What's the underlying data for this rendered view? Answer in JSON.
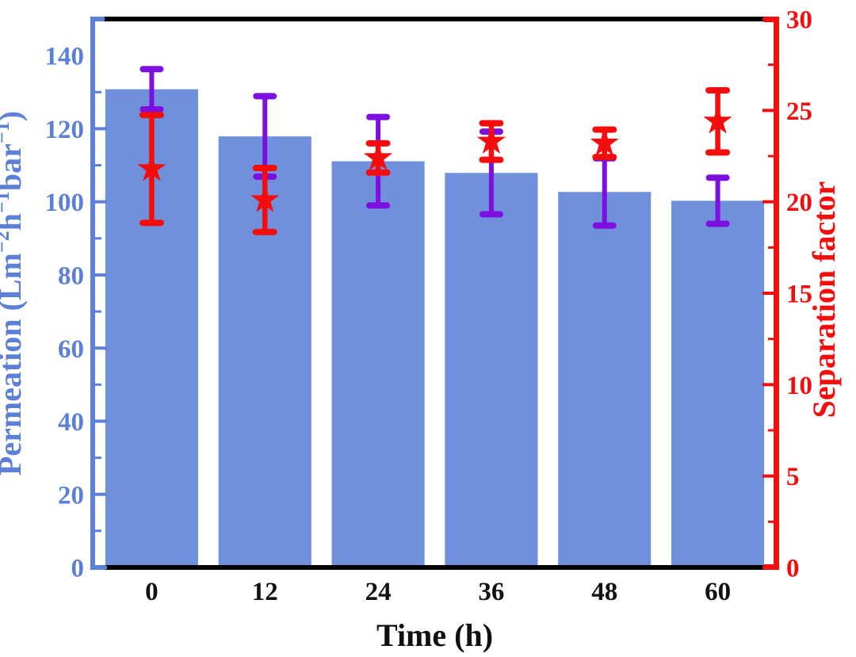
{
  "figure": {
    "background": "#ffffff"
  },
  "chart_data": {
    "type": "bar",
    "title": "",
    "categories": [
      "0",
      "12",
      "24",
      "36",
      "48",
      "60"
    ],
    "xlabel": "Time (h)",
    "grid": false,
    "legend": null,
    "left_axis": {
      "label_plain": "Permeation (Lm−2h−1bar−1)",
      "label_parts": [
        {
          "text": "Permeation (Lm"
        },
        {
          "sup": "−2"
        },
        {
          "text": "h"
        },
        {
          "sup": "−1"
        },
        {
          "text": "bar"
        },
        {
          "sup": "−1"
        },
        {
          "text": ")"
        }
      ],
      "min": 0,
      "max": 150,
      "major_tick_step": 20,
      "minor_tick_step": 10,
      "tick_labels": [
        "0",
        "20",
        "40",
        "60",
        "80",
        "100",
        "120",
        "140"
      ],
      "color": "#5C80D8"
    },
    "right_axis": {
      "label": "Separation factor",
      "min": 0,
      "max": 30,
      "major_tick_step": 5,
      "minor_tick_step": 2.5,
      "tick_labels": [
        "0",
        "5",
        "10",
        "15",
        "20",
        "25",
        "30"
      ],
      "color": "#F50D0D"
    },
    "series": [
      {
        "name": "Permeation",
        "type": "bar",
        "axis": "left",
        "bar_color": "#7090DB",
        "error_color": "#7D10E0",
        "values": [
          130.8,
          117.9,
          111.1,
          107.9,
          102.7,
          100.3
        ],
        "errors": [
          5.5,
          11.0,
          12.1,
          11.3,
          9.2,
          6.3
        ]
      },
      {
        "name": "Separation factor",
        "type": "star",
        "axis": "right",
        "marker_color": "#F50D0D",
        "error_color": "#F50D0D",
        "values": [
          21.8,
          20.1,
          22.4,
          23.3,
          23.2,
          24.4
        ],
        "errors": [
          2.95,
          1.75,
          0.8,
          1.0,
          0.75,
          1.7
        ]
      }
    ],
    "spine_colors": {
      "top": "#000000",
      "bottom": "#000000",
      "left": "#5C80D8",
      "right": "#F50D0D"
    },
    "tick_label_color_x": "#111111"
  }
}
